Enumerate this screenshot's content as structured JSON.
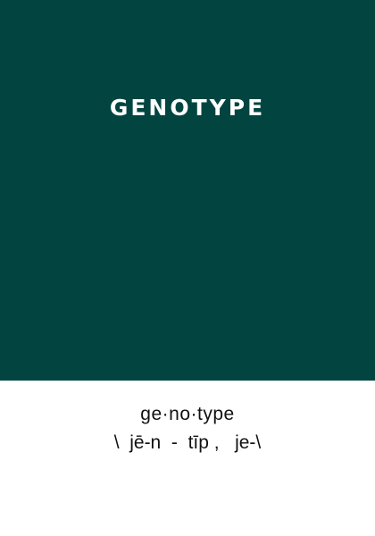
{
  "cover": {
    "title": "GENOTYPE",
    "background_color": "#024540"
  },
  "definition": {
    "syllables": "ge·no·type",
    "pronunciation": "\\  jē-n  -  tīp ,   je-\\"
  }
}
